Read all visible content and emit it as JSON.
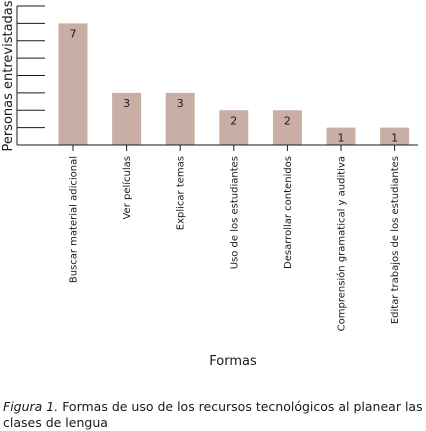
{
  "chart_data": {
    "type": "bar",
    "categories": [
      "Buscar material adicional",
      "Ver películas",
      "Explicar temas",
      "Uso de los estudiantes",
      "Desarrollar contenidos",
      "Comprensión gramatical y auditiva",
      "Editar trabajos de los estudiantes"
    ],
    "values": [
      7,
      3,
      3,
      2,
      2,
      1,
      1
    ],
    "xlabel": "Formas",
    "ylabel": "Personas entrevistadas",
    "ylim": [
      0,
      8
    ],
    "data_labels": true,
    "grid": false,
    "bar_color": "#c8aea4"
  },
  "caption": {
    "prefix": "Figura 1.",
    "text": " Formas de uso de los recursos tecnológicos al planear las clases de lengua"
  }
}
